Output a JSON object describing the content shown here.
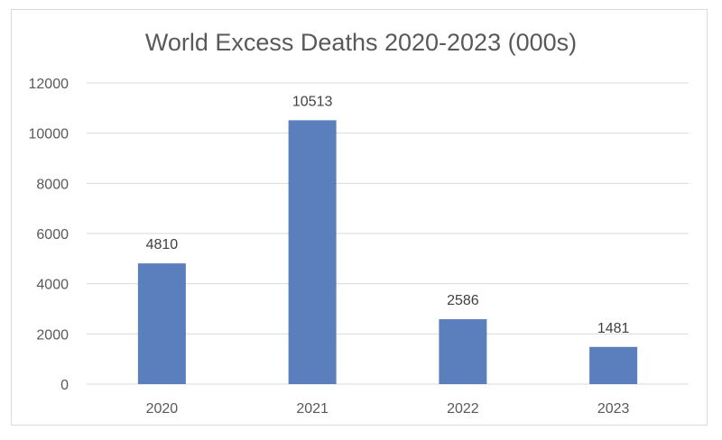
{
  "chart_data": {
    "type": "bar",
    "title": "World Excess Deaths 2020-2023 (000s)",
    "categories": [
      "2020",
      "2021",
      "2022",
      "2023"
    ],
    "values": [
      4810,
      10513,
      2586,
      1481
    ],
    "data_labels": [
      "4810",
      "10513",
      "2586",
      "1481"
    ],
    "ylim": [
      0,
      12000
    ],
    "yticks": [
      "0",
      "2000",
      "4000",
      "6000",
      "8000",
      "10000",
      "12000"
    ],
    "grid": true,
    "legend": "none",
    "bar_color": "#5b7fbd"
  }
}
